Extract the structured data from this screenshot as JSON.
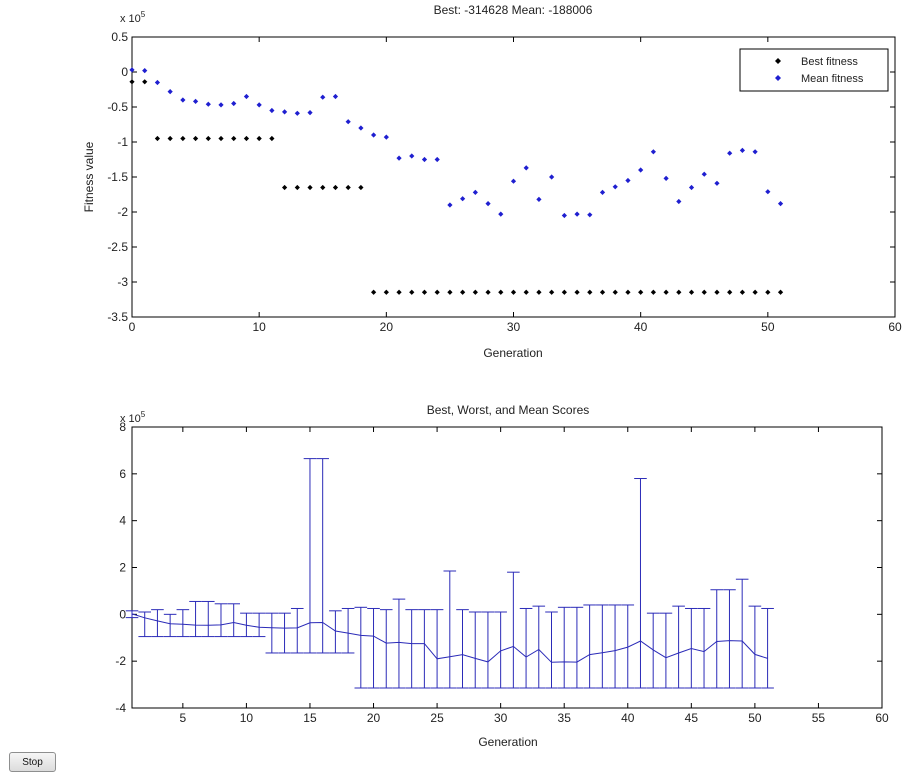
{
  "controls": {
    "stop_label": "Stop"
  },
  "colors": {
    "best": "#000000",
    "mean": "#1f1fd0",
    "errorbar": "#2b2bb8",
    "axis": "#000000"
  },
  "chart_data": [
    {
      "type": "scatter",
      "title": "Best: -314628 Mean: -188006",
      "xlabel": "Generation",
      "ylabel": "Fitness value",
      "exponent_label": "x 10",
      "exponent_power": "5",
      "xlim": [
        0,
        60
      ],
      "ylim": [
        -3.5,
        0.5
      ],
      "xticks": [
        0,
        10,
        20,
        30,
        40,
        50,
        60
      ],
      "yticks": [
        0.5,
        0,
        -0.5,
        -1,
        -1.5,
        -2,
        -2.5,
        -3,
        -3.5
      ],
      "ytick_labels": [
        "0.5",
        "0",
        "-0.5",
        "-1",
        "-1.5",
        "-2",
        "-2.5",
        "-3",
        "-3.5"
      ],
      "legend": {
        "position": "top-right",
        "entries": [
          "Best fitness",
          "Mean fitness"
        ]
      },
      "x": [
        0,
        1,
        2,
        3,
        4,
        5,
        6,
        7,
        8,
        9,
        10,
        11,
        12,
        13,
        14,
        15,
        16,
        17,
        18,
        19,
        20,
        21,
        22,
        23,
        24,
        25,
        26,
        27,
        28,
        29,
        30,
        31,
        32,
        33,
        34,
        35,
        36,
        37,
        38,
        39,
        40,
        41,
        42,
        43,
        44,
        45,
        46,
        47,
        48,
        49,
        50,
        51
      ],
      "series": [
        {
          "name": "Best fitness",
          "values": [
            -0.14,
            -0.14,
            -0.95,
            -0.95,
            -0.95,
            -0.95,
            -0.95,
            -0.95,
            -0.95,
            -0.95,
            -0.95,
            -0.95,
            -1.65,
            -1.65,
            -1.65,
            -1.65,
            -1.65,
            -1.65,
            -1.65,
            -3.146,
            -3.146,
            -3.146,
            -3.146,
            -3.146,
            -3.146,
            -3.146,
            -3.146,
            -3.146,
            -3.146,
            -3.146,
            -3.146,
            -3.146,
            -3.146,
            -3.146,
            -3.146,
            -3.146,
            -3.146,
            -3.146,
            -3.146,
            -3.146,
            -3.146,
            -3.146,
            -3.146,
            -3.146,
            -3.146,
            -3.146,
            -3.146,
            -3.146,
            -3.146,
            -3.146,
            -3.146,
            -3.146
          ]
        },
        {
          "name": "Mean fitness",
          "values": [
            0.03,
            0.02,
            -0.15,
            -0.28,
            -0.4,
            -0.42,
            -0.46,
            -0.47,
            -0.45,
            -0.35,
            -0.47,
            -0.55,
            -0.57,
            -0.59,
            -0.58,
            -0.36,
            -0.35,
            -0.71,
            -0.8,
            -0.9,
            -0.93,
            -1.23,
            -1.2,
            -1.25,
            -1.25,
            -1.9,
            -1.81,
            -1.72,
            -1.88,
            -2.03,
            -1.56,
            -1.37,
            -1.82,
            -1.5,
            -2.05,
            -2.03,
            -2.04,
            -1.72,
            -1.64,
            -1.55,
            -1.4,
            -1.14,
            -1.52,
            -1.85,
            -1.65,
            -1.46,
            -1.59,
            -1.16,
            -1.12,
            -1.14,
            -1.71,
            -1.88
          ]
        }
      ]
    },
    {
      "type": "errorbar",
      "title": "Best, Worst, and Mean Scores",
      "xlabel": "Generation",
      "exponent_label": "x 10",
      "exponent_power": "5",
      "xlim": [
        1,
        60
      ],
      "ylim": [
        -4,
        8
      ],
      "xticks": [
        5,
        10,
        15,
        20,
        25,
        30,
        35,
        40,
        45,
        50,
        55,
        60
      ],
      "yticks": [
        8,
        6,
        4,
        2,
        0,
        -2,
        -4
      ],
      "x": [
        1,
        2,
        3,
        4,
        5,
        6,
        7,
        8,
        9,
        10,
        11,
        12,
        13,
        14,
        15,
        16,
        17,
        18,
        19,
        20,
        21,
        22,
        23,
        24,
        25,
        26,
        27,
        28,
        29,
        30,
        31,
        32,
        33,
        34,
        35,
        36,
        37,
        38,
        39,
        40,
        41,
        42,
        43,
        44,
        45,
        46,
        47,
        48,
        49,
        50,
        51
      ],
      "mean": [
        0.02,
        -0.15,
        -0.28,
        -0.4,
        -0.42,
        -0.46,
        -0.47,
        -0.45,
        -0.35,
        -0.47,
        -0.55,
        -0.57,
        -0.59,
        -0.58,
        -0.36,
        -0.35,
        -0.71,
        -0.8,
        -0.9,
        -0.93,
        -1.23,
        -1.2,
        -1.25,
        -1.25,
        -1.9,
        -1.81,
        -1.72,
        -1.88,
        -2.03,
        -1.56,
        -1.37,
        -1.82,
        -1.5,
        -2.05,
        -2.03,
        -2.04,
        -1.72,
        -1.64,
        -1.55,
        -1.4,
        -1.14,
        -1.52,
        -1.85,
        -1.65,
        -1.46,
        -1.59,
        -1.16,
        -1.12,
        -1.14,
        -1.71,
        -1.88
      ],
      "best": [
        -0.14,
        -0.95,
        -0.95,
        -0.95,
        -0.95,
        -0.95,
        -0.95,
        -0.95,
        -0.95,
        -0.95,
        -0.95,
        -1.65,
        -1.65,
        -1.65,
        -1.65,
        -1.65,
        -1.65,
        -1.65,
        -3.146,
        -3.146,
        -3.146,
        -3.146,
        -3.146,
        -3.146,
        -3.146,
        -3.146,
        -3.146,
        -3.146,
        -3.146,
        -3.146,
        -3.146,
        -3.146,
        -3.146,
        -3.146,
        -3.146,
        -3.146,
        -3.146,
        -3.146,
        -3.146,
        -3.146,
        -3.146,
        -3.146,
        -3.146,
        -3.146,
        -3.146,
        -3.146,
        -3.146,
        -3.146,
        -3.146,
        -3.146,
        -3.146
      ],
      "worst": [
        0.15,
        0.1,
        0.2,
        0.0,
        0.2,
        0.55,
        0.55,
        0.45,
        0.45,
        0.05,
        0.05,
        0.05,
        0.05,
        0.25,
        6.65,
        6.65,
        0.15,
        0.25,
        0.3,
        0.25,
        0.2,
        0.65,
        0.2,
        0.2,
        0.2,
        1.85,
        0.2,
        0.1,
        0.1,
        0.1,
        1.8,
        0.25,
        0.35,
        0.1,
        0.3,
        0.3,
        0.4,
        0.4,
        0.4,
        0.4,
        5.8,
        0.05,
        0.05,
        0.35,
        0.25,
        0.25,
        1.05,
        1.05,
        1.5,
        0.35,
        0.25
      ]
    }
  ]
}
